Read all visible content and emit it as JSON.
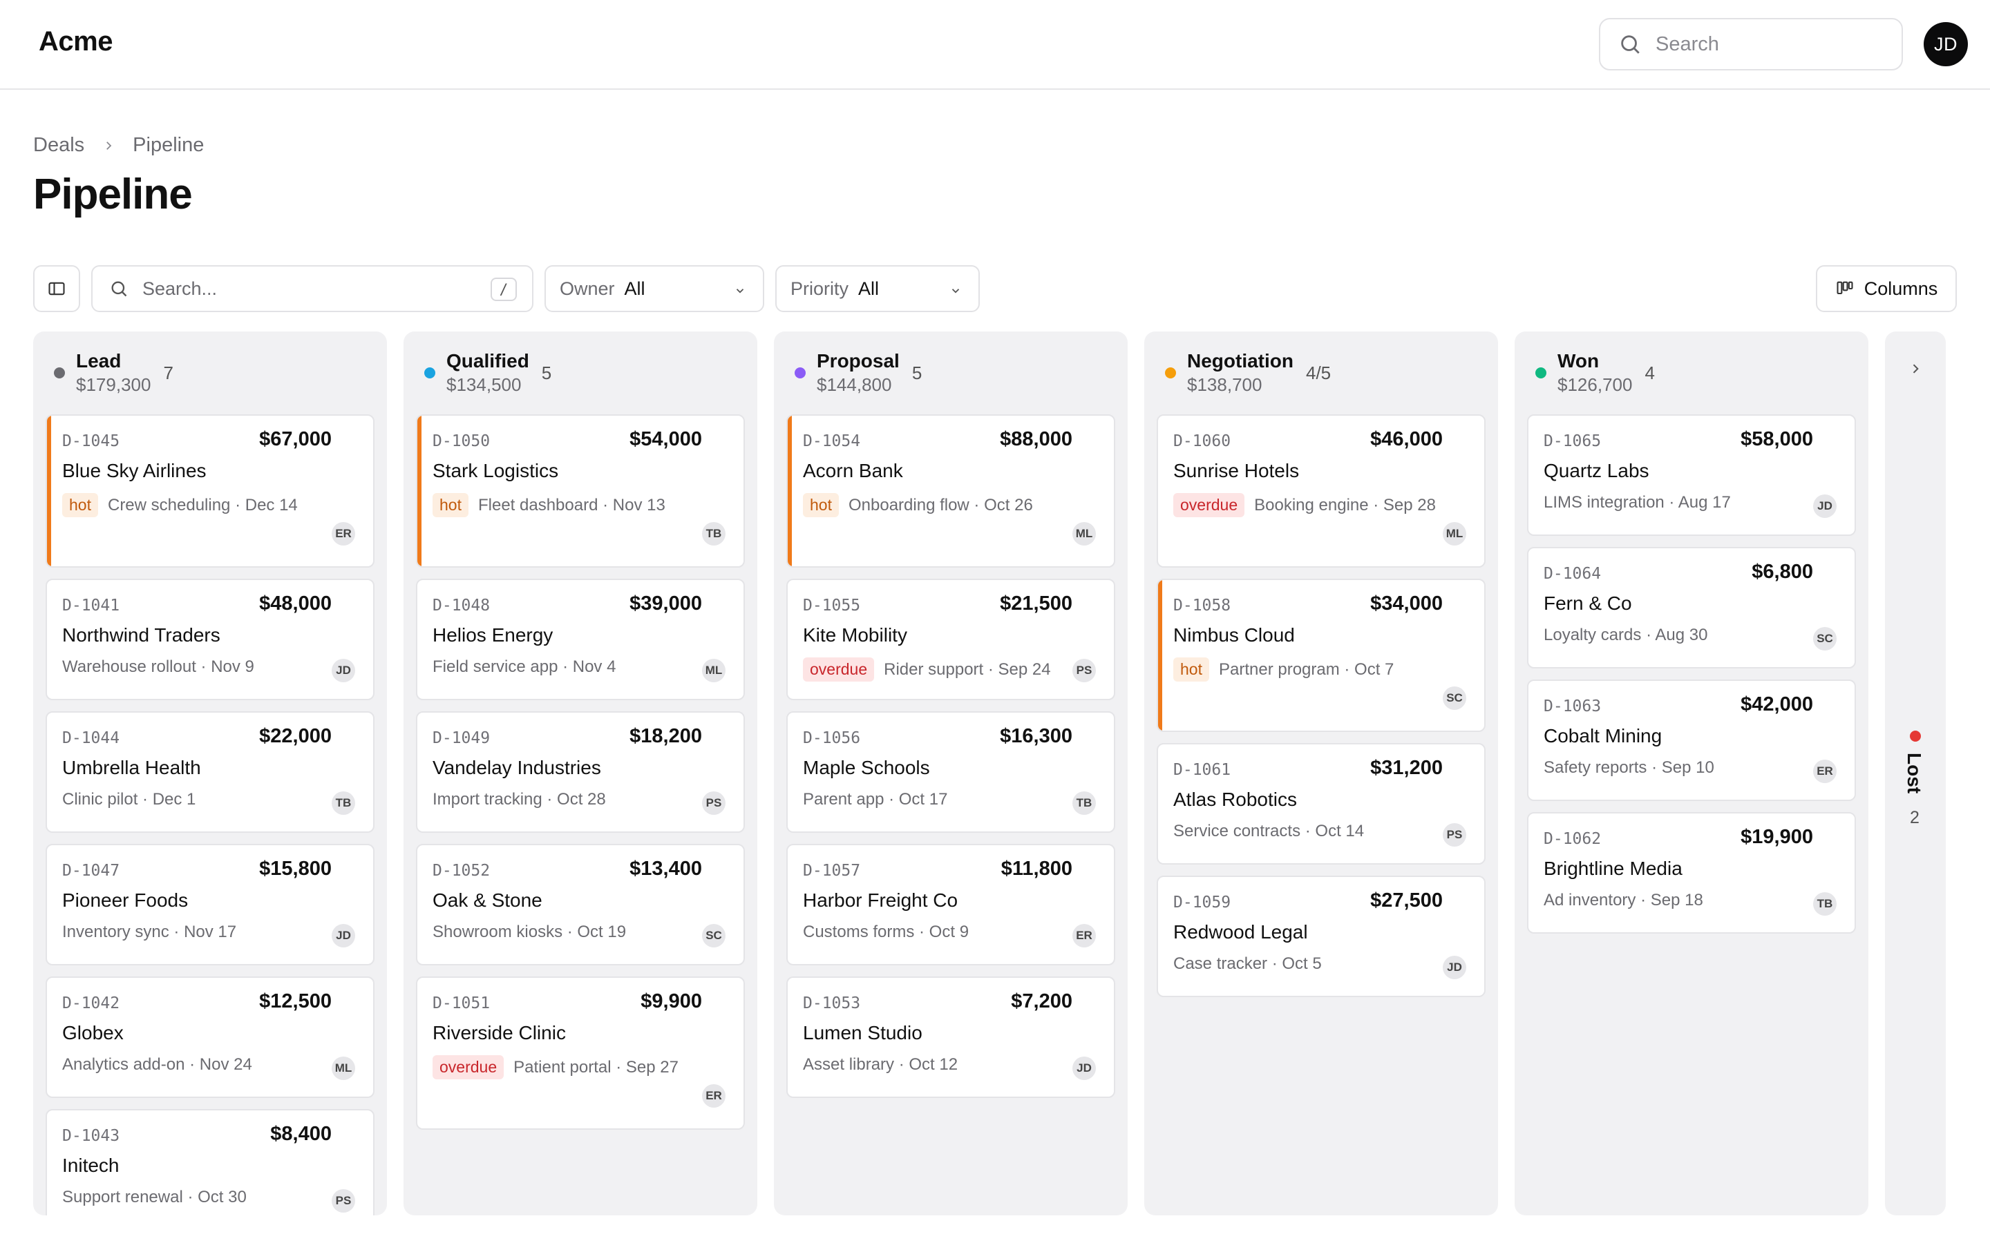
{
  "app": {
    "brand": "Acme"
  },
  "top_search": {
    "placeholder": "Search"
  },
  "user": {
    "initials": "JD"
  },
  "breadcrumb": [
    "Deals",
    "Pipeline"
  ],
  "page_title": "Pipeline",
  "toolbar": {
    "search_placeholder": "Search...",
    "search_shortcut": "/",
    "owner_label": "Owner",
    "owner_value": "All",
    "priority_label": "Priority",
    "priority_value": "All",
    "columns_label": "Columns"
  },
  "colors": {
    "hot": "#f07a1a",
    "overdue": "#c8262b",
    "lead": "#6b6b70",
    "qualified": "#1aa3e0",
    "proposal": "#8b5cf6",
    "negotiation": "#f59e0b",
    "won": "#10b981",
    "lost": "#e53935"
  },
  "columns": [
    {
      "name": "Lead",
      "total": "$179,300",
      "count": "7",
      "color": "#6b6b70",
      "cards": [
        {
          "id": "D-1045",
          "amount": "$67,000",
          "company": "Blue Sky Airlines",
          "badge": "hot",
          "meta": "Crew scheduling · Dec 14",
          "owner": "ER"
        },
        {
          "id": "D-1041",
          "amount": "$48,000",
          "company": "Northwind Traders",
          "badge": "",
          "meta": "Warehouse rollout · Nov 9",
          "owner": "JD"
        },
        {
          "id": "D-1044",
          "amount": "$22,000",
          "company": "Umbrella Health",
          "badge": "",
          "meta": "Clinic pilot · Dec 1",
          "owner": "TB"
        },
        {
          "id": "D-1047",
          "amount": "$15,800",
          "company": "Pioneer Foods",
          "badge": "",
          "meta": "Inventory sync · Nov 17",
          "owner": "JD"
        },
        {
          "id": "D-1042",
          "amount": "$12,500",
          "company": "Globex",
          "badge": "",
          "meta": "Analytics add-on · Nov 24",
          "owner": "ML"
        },
        {
          "id": "D-1043",
          "amount": "$8,400",
          "company": "Initech",
          "badge": "",
          "meta": "Support renewal · Oct 30",
          "owner": "PS"
        }
      ]
    },
    {
      "name": "Qualified",
      "total": "$134,500",
      "count": "5",
      "color": "#1aa3e0",
      "cards": [
        {
          "id": "D-1050",
          "amount": "$54,000",
          "company": "Stark Logistics",
          "badge": "hot",
          "meta": "Fleet dashboard · Nov 13",
          "owner": "TB"
        },
        {
          "id": "D-1048",
          "amount": "$39,000",
          "company": "Helios Energy",
          "badge": "",
          "meta": "Field service app · Nov 4",
          "owner": "ML"
        },
        {
          "id": "D-1049",
          "amount": "$18,200",
          "company": "Vandelay Industries",
          "badge": "",
          "meta": "Import tracking · Oct 28",
          "owner": "PS"
        },
        {
          "id": "D-1052",
          "amount": "$13,400",
          "company": "Oak & Stone",
          "badge": "",
          "meta": "Showroom kiosks · Oct 19",
          "owner": "SC"
        },
        {
          "id": "D-1051",
          "amount": "$9,900",
          "company": "Riverside Clinic",
          "badge": "overdue",
          "meta": "Patient portal · Sep 27",
          "owner": "ER"
        }
      ]
    },
    {
      "name": "Proposal",
      "total": "$144,800",
      "count": "5",
      "color": "#8b5cf6",
      "cards": [
        {
          "id": "D-1054",
          "amount": "$88,000",
          "company": "Acorn Bank",
          "badge": "hot",
          "meta": "Onboarding flow · Oct 26",
          "owner": "ML"
        },
        {
          "id": "D-1055",
          "amount": "$21,500",
          "company": "Kite Mobility",
          "badge": "overdue",
          "meta": "Rider support · Sep 24",
          "owner": "PS"
        },
        {
          "id": "D-1056",
          "amount": "$16,300",
          "company": "Maple Schools",
          "badge": "",
          "meta": "Parent app · Oct 17",
          "owner": "TB"
        },
        {
          "id": "D-1057",
          "amount": "$11,800",
          "company": "Harbor Freight Co",
          "badge": "",
          "meta": "Customs forms · Oct 9",
          "owner": "ER"
        },
        {
          "id": "D-1053",
          "amount": "$7,200",
          "company": "Lumen Studio",
          "badge": "",
          "meta": "Asset library · Oct 12",
          "owner": "JD"
        }
      ]
    },
    {
      "name": "Negotiation",
      "total": "$138,700",
      "count": "4/5",
      "color": "#f59e0b",
      "cards": [
        {
          "id": "D-1060",
          "amount": "$46,000",
          "company": "Sunrise Hotels",
          "badge": "overdue",
          "meta": "Booking engine · Sep 28",
          "owner": "ML"
        },
        {
          "id": "D-1058",
          "amount": "$34,000",
          "company": "Nimbus Cloud",
          "badge": "hot",
          "meta": "Partner program · Oct 7",
          "owner": "SC"
        },
        {
          "id": "D-1061",
          "amount": "$31,200",
          "company": "Atlas Robotics",
          "badge": "",
          "meta": "Service contracts · Oct 14",
          "owner": "PS"
        },
        {
          "id": "D-1059",
          "amount": "$27,500",
          "company": "Redwood Legal",
          "badge": "",
          "meta": "Case tracker · Oct 5",
          "owner": "JD"
        }
      ]
    },
    {
      "name": "Won",
      "total": "$126,700",
      "count": "4",
      "color": "#10b981",
      "cards": [
        {
          "id": "D-1065",
          "amount": "$58,000",
          "company": "Quartz Labs",
          "badge": "",
          "meta": "LIMS integration · Aug 17",
          "owner": "JD"
        },
        {
          "id": "D-1064",
          "amount": "$6,800",
          "company": "Fern & Co",
          "badge": "",
          "meta": "Loyalty cards · Aug 30",
          "owner": "SC"
        },
        {
          "id": "D-1063",
          "amount": "$42,000",
          "company": "Cobalt Mining",
          "badge": "",
          "meta": "Safety reports · Sep 10",
          "owner": "ER"
        },
        {
          "id": "D-1062",
          "amount": "$19,900",
          "company": "Brightline Media",
          "badge": "",
          "meta": "Ad inventory · Sep 18",
          "owner": "TB"
        }
      ]
    }
  ],
  "lost": {
    "name": "Lost",
    "count": "2"
  }
}
